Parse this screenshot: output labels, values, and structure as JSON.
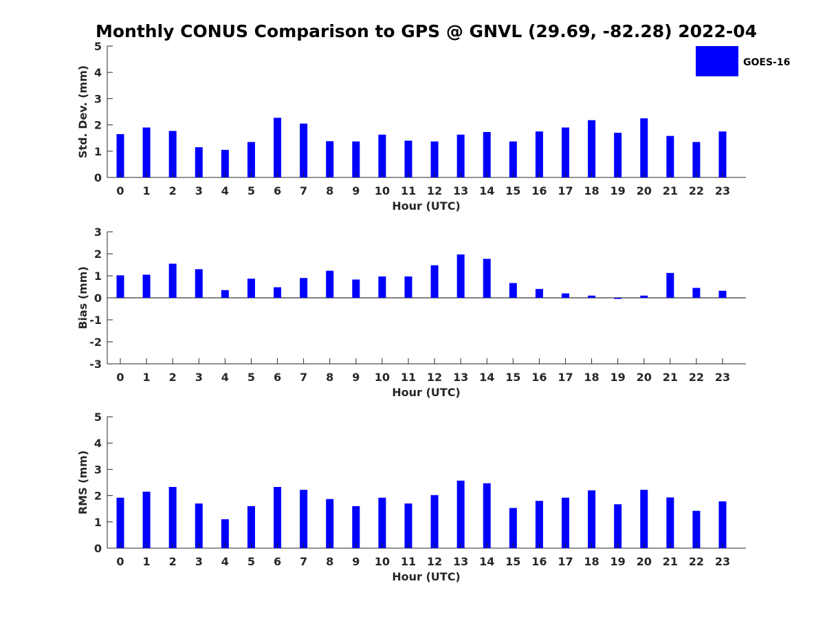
{
  "title": "Monthly CONUS Comparison to GPS @ GNVL (29.69, -82.28) 2022-04",
  "legend": {
    "label": "GOES-16",
    "color": "#0000ff"
  },
  "chart_data": [
    {
      "type": "bar",
      "name": "std-dev",
      "xlabel": "Hour (UTC)",
      "ylabel": "Std. Dev. (mm)",
      "ylim": [
        0,
        5
      ],
      "yticks": [
        0,
        1,
        2,
        3,
        4,
        5
      ],
      "categories": [
        "0",
        "1",
        "2",
        "3",
        "4",
        "5",
        "6",
        "7",
        "8",
        "9",
        "10",
        "11",
        "12",
        "13",
        "14",
        "15",
        "16",
        "17",
        "18",
        "19",
        "20",
        "21",
        "22",
        "23"
      ],
      "series": [
        {
          "name": "GOES-16",
          "color": "#0000ff",
          "values": [
            1.65,
            1.9,
            1.77,
            1.15,
            1.05,
            1.35,
            2.27,
            2.05,
            1.38,
            1.37,
            1.63,
            1.4,
            1.37,
            1.63,
            1.73,
            1.37,
            1.75,
            1.9,
            2.18,
            1.7,
            2.25,
            1.58,
            1.35,
            1.75
          ]
        }
      ]
    },
    {
      "type": "bar",
      "name": "bias",
      "xlabel": "Hour (UTC)",
      "ylabel": "Bias (mm)",
      "ylim": [
        -3,
        3
      ],
      "yticks": [
        -3,
        -2,
        -1,
        0,
        1,
        2,
        3
      ],
      "categories": [
        "0",
        "1",
        "2",
        "3",
        "4",
        "5",
        "6",
        "7",
        "8",
        "9",
        "10",
        "11",
        "12",
        "13",
        "14",
        "15",
        "16",
        "17",
        "18",
        "19",
        "20",
        "21",
        "22",
        "23"
      ],
      "series": [
        {
          "name": "GOES-16",
          "color": "#0000ff",
          "values": [
            1.02,
            1.05,
            1.55,
            1.3,
            0.35,
            0.87,
            0.48,
            0.9,
            1.23,
            0.83,
            0.97,
            0.97,
            1.48,
            1.97,
            1.77,
            0.67,
            0.4,
            0.2,
            0.1,
            -0.05,
            0.1,
            1.13,
            0.45,
            0.32
          ]
        }
      ]
    },
    {
      "type": "bar",
      "name": "rms",
      "xlabel": "Hour (UTC)",
      "ylabel": "RMS (mm)",
      "ylim": [
        0,
        5
      ],
      "yticks": [
        0,
        1,
        2,
        3,
        4,
        5
      ],
      "categories": [
        "0",
        "1",
        "2",
        "3",
        "4",
        "5",
        "6",
        "7",
        "8",
        "9",
        "10",
        "11",
        "12",
        "13",
        "14",
        "15",
        "16",
        "17",
        "18",
        "19",
        "20",
        "21",
        "22",
        "23"
      ],
      "series": [
        {
          "name": "GOES-16",
          "color": "#0000ff",
          "values": [
            1.92,
            2.15,
            2.33,
            1.7,
            1.1,
            1.6,
            2.33,
            2.22,
            1.87,
            1.6,
            1.92,
            1.7,
            2.02,
            2.57,
            2.47,
            1.53,
            1.8,
            1.92,
            2.2,
            1.67,
            2.22,
            1.93,
            1.42,
            1.78
          ]
        }
      ]
    }
  ]
}
